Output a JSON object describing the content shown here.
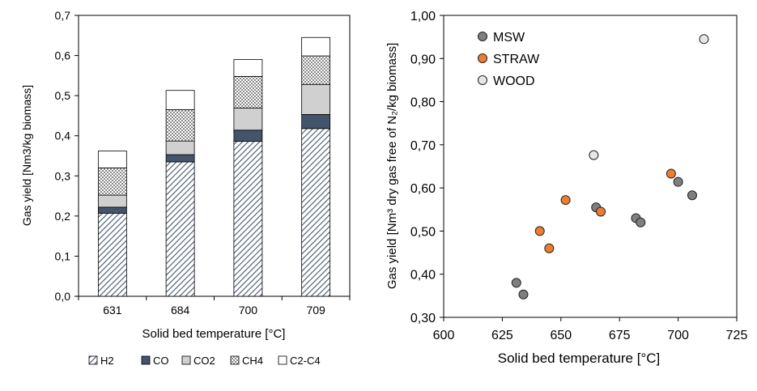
{
  "chart_data": [
    {
      "type": "bar",
      "stacked": true,
      "categories": [
        "631",
        "684",
        "700",
        "709"
      ],
      "xlabel": "Solid bed temperature [°C]",
      "ylabel": "Gas yield [Nm3/kg biomass]",
      "ylim": [
        0,
        0.7
      ],
      "yticks": [
        "0,0",
        "0,1",
        "0,2",
        "0,3",
        "0,4",
        "0,5",
        "0,6",
        "0,7"
      ],
      "grid": false,
      "legend_position": "bottom",
      "series": [
        {
          "name": "H2",
          "values": [
            0.207,
            0.335,
            0.386,
            0.418
          ],
          "fill": "hatch-diagonal"
        },
        {
          "name": "CO",
          "values": [
            0.015,
            0.018,
            0.028,
            0.035
          ],
          "fill": "#44546a"
        },
        {
          "name": "CO2",
          "values": [
            0.03,
            0.034,
            0.055,
            0.075
          ],
          "fill": "#d0d0d0"
        },
        {
          "name": "CH4",
          "values": [
            0.068,
            0.078,
            0.079,
            0.071
          ],
          "fill": "hatch-cross"
        },
        {
          "name": "C2-C4",
          "values": [
            0.042,
            0.048,
            0.042,
            0.046
          ],
          "fill": "#ffffff"
        }
      ]
    },
    {
      "type": "scatter",
      "xlabel": "Solid bed temperature [°C]",
      "ylabel": "Gas yield [Nm³ dry gas free of N₂/kg biomass]",
      "xlim": [
        600,
        725
      ],
      "ylim": [
        0.3,
        1.0
      ],
      "xticks": [
        "600",
        "625",
        "650",
        "675",
        "700",
        "725"
      ],
      "yticks": [
        "0,30",
        "0,40",
        "0,50",
        "0,60",
        "0,70",
        "0,80",
        "0,90",
        "1,00"
      ],
      "grid": false,
      "legend_position": "top-left",
      "series": [
        {
          "name": "MSW",
          "color": "#7f7f7f",
          "points": [
            [
              631,
              0.38
            ],
            [
              634,
              0.353
            ],
            [
              665,
              0.555
            ],
            [
              682,
              0.53
            ],
            [
              684,
              0.52
            ],
            [
              700,
              0.614
            ],
            [
              706,
              0.583
            ]
          ]
        },
        {
          "name": "STRAW",
          "color": "#ed7d31",
          "points": [
            [
              641,
              0.5
            ],
            [
              645,
              0.46
            ],
            [
              652,
              0.572
            ],
            [
              667,
              0.545
            ],
            [
              697,
              0.633
            ]
          ]
        },
        {
          "name": "WOOD",
          "color": "#e7e7e7",
          "points": [
            [
              664,
              0.676
            ],
            [
              711,
              0.945
            ]
          ]
        }
      ]
    }
  ]
}
